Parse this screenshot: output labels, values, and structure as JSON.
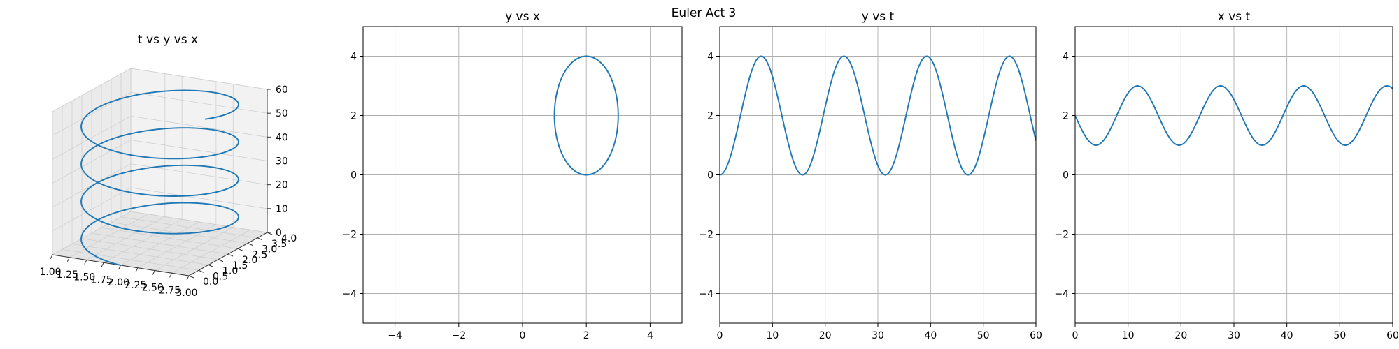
{
  "chart_data": {
    "title": "Euler Act 3",
    "line_color": "#1f77b4",
    "grid": true,
    "model": {
      "x": "2 - sin(0.4 t)",
      "y": "2 - 2 cos(0.4 t)",
      "t_range": [
        0,
        60
      ]
    },
    "subplots": [
      {
        "id": "3d",
        "type": "line3d",
        "title": "t vs y vs x",
        "x_ticks": [
          "1.00",
          "1.25",
          "1.50",
          "1.75",
          "2.00",
          "2.25",
          "2.50",
          "2.75",
          "3.00"
        ],
        "y_ticks": [
          "0.0",
          "0.5",
          "1.0",
          "1.5",
          "2.0",
          "2.5",
          "3.0",
          "3.5",
          "4.0"
        ],
        "z_ticks": [
          "0",
          "10",
          "20",
          "30",
          "40",
          "50",
          "60"
        ],
        "x_range": [
          1,
          3
        ],
        "y_range": [
          0,
          4
        ],
        "z_range": [
          0,
          60
        ]
      },
      {
        "id": "yx",
        "type": "line",
        "title": "y vs x",
        "x_field": "x",
        "y_field": "y",
        "xlim": [
          -5,
          5
        ],
        "ylim": [
          -5,
          5
        ],
        "x_ticks": [
          "−4",
          "−2",
          "0",
          "2",
          "4"
        ],
        "x_tick_values": [
          -4,
          -2,
          0,
          2,
          4
        ],
        "y_ticks": [
          "−4",
          "−2",
          "0",
          "2",
          "4"
        ],
        "y_tick_values": [
          -4,
          -2,
          0,
          2,
          4
        ]
      },
      {
        "id": "yt",
        "type": "line",
        "title": "y vs t",
        "x_field": "t",
        "y_field": "y",
        "xlim": [
          0,
          60
        ],
        "ylim": [
          -5,
          5
        ],
        "x_ticks": [
          "0",
          "10",
          "20",
          "30",
          "40",
          "50",
          "60"
        ],
        "x_tick_values": [
          0,
          10,
          20,
          30,
          40,
          50,
          60
        ],
        "y_ticks": [
          "−4",
          "−2",
          "0",
          "2",
          "4"
        ],
        "y_tick_values": [
          -4,
          -2,
          0,
          2,
          4
        ]
      },
      {
        "id": "xt",
        "type": "line",
        "title": "x vs t",
        "x_field": "t",
        "y_field": "x",
        "xlim": [
          0,
          60
        ],
        "ylim": [
          -5,
          5
        ],
        "x_ticks": [
          "0",
          "10",
          "20",
          "30",
          "40",
          "50",
          "60"
        ],
        "x_tick_values": [
          0,
          10,
          20,
          30,
          40,
          50,
          60
        ],
        "y_ticks": [
          "−4",
          "−2",
          "0",
          "2",
          "4"
        ],
        "y_tick_values": [
          -4,
          -2,
          0,
          2,
          4
        ]
      }
    ]
  }
}
